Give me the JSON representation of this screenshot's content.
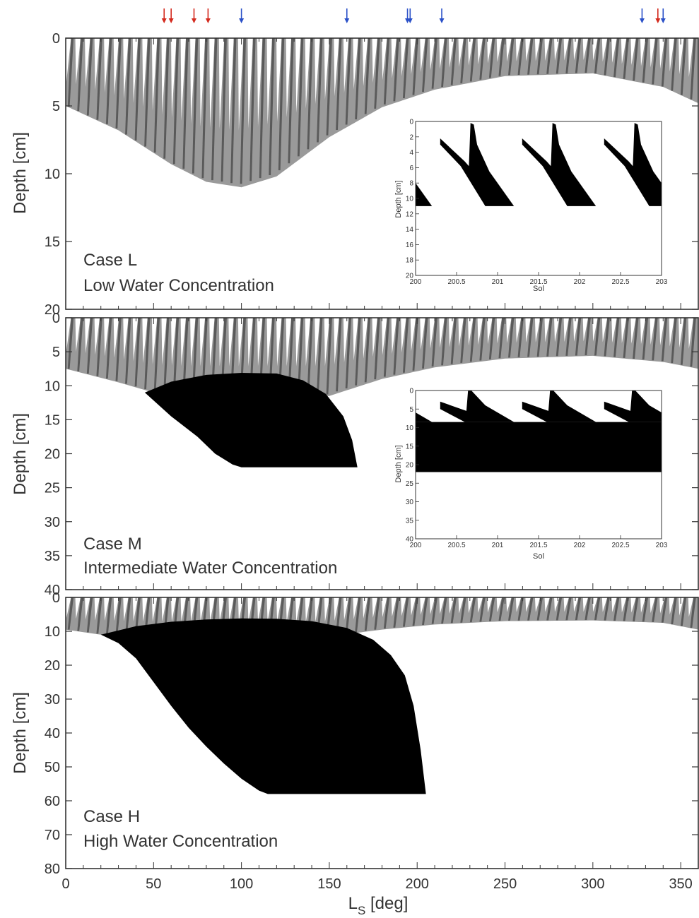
{
  "colors": {
    "ice_dry": "#9a9a9a",
    "ice_dark": "#5a5a5a",
    "ice_perm": "#000000",
    "arrow_red": "#d42a1e",
    "arrow_blue": "#2a50c8",
    "axis": "#333333"
  },
  "arrows": [
    {
      "ls": 56,
      "color": "red"
    },
    {
      "ls": 60,
      "color": "red"
    },
    {
      "ls": 73,
      "color": "red"
    },
    {
      "ls": 81,
      "color": "red"
    },
    {
      "ls": 100,
      "color": "blue"
    },
    {
      "ls": 160,
      "color": "blue"
    },
    {
      "ls": 194.5,
      "color": "blue"
    },
    {
      "ls": 196,
      "color": "blue"
    },
    {
      "ls": 214,
      "color": "blue"
    },
    {
      "ls": 328,
      "color": "blue"
    },
    {
      "ls": 337,
      "color": "red"
    },
    {
      "ls": 340,
      "color": "blue"
    }
  ],
  "chart_data": [
    {
      "type": "area",
      "id": "case-l",
      "case_label": "Case L",
      "case_desc": "Low Water Concentration",
      "xlabel": "",
      "ylabel": "Depth [cm]",
      "xlim": [
        0,
        360
      ],
      "ylim": [
        20,
        0
      ],
      "yticks": [
        0,
        5,
        10,
        15,
        20
      ],
      "x_ticklabels_shown": false,
      "seasonal_ice_max_depth": {
        "ls": [
          0,
          30,
          60,
          80,
          100,
          120,
          150,
          180,
          210,
          250,
          300,
          340,
          360
        ],
        "depth": [
          5,
          6.8,
          9.3,
          10.6,
          11,
          10.2,
          7.3,
          5.1,
          3.8,
          2.8,
          2.6,
          3.6,
          4.8
        ]
      },
      "permanent_ice": null,
      "inset": {
        "xlabel": "Sol",
        "ylabel": "Depth [cm]",
        "xlim": [
          200,
          203
        ],
        "ylim": [
          20,
          0
        ],
        "xticks": [
          "200",
          "200.5",
          "201",
          "201.5",
          "202",
          "202.5",
          "203"
        ],
        "yticks": [
          "0",
          "2",
          "4",
          "6",
          "8",
          "10",
          "12",
          "14",
          "16",
          "18",
          "20"
        ],
        "max_depth": 11
      }
    },
    {
      "type": "area",
      "id": "case-m",
      "case_label": "Case M",
      "case_desc": "Intermediate Water Concentration",
      "xlabel": "",
      "ylabel": "Depth [cm]",
      "xlim": [
        0,
        360
      ],
      "ylim": [
        40,
        0
      ],
      "yticks": [
        0,
        5,
        10,
        15,
        20,
        25,
        30,
        35,
        40
      ],
      "x_ticklabels_shown": false,
      "seasonal_ice_max_depth": {
        "ls": [
          0,
          30,
          50,
          70,
          100,
          130,
          150,
          180,
          210,
          250,
          300,
          340,
          360
        ],
        "depth": [
          7.5,
          9.5,
          11,
          11.5,
          11.5,
          11.5,
          11.5,
          9,
          7.3,
          6,
          5.6,
          6.5,
          7.5
        ]
      },
      "permanent_ice": {
        "top": {
          "ls": [
            45,
            60,
            80,
            100,
            120,
            135,
            148,
            158,
            163,
            166
          ],
          "depth": [
            11,
            9.4,
            8.4,
            8.1,
            8.2,
            9.2,
            11.2,
            14.5,
            18,
            22
          ]
        },
        "bottom": {
          "ls": [
            45,
            60,
            75,
            85,
            95,
            100,
            166
          ],
          "depth": [
            11,
            14.5,
            17.5,
            20,
            21.6,
            22,
            22
          ]
        }
      },
      "inset": {
        "xlabel": "Sol",
        "ylabel": "Depth [cm]",
        "xlim": [
          200,
          203
        ],
        "ylim": [
          40,
          0
        ],
        "xticks": [
          "200",
          "200.5",
          "201",
          "201.5",
          "202",
          "202.5",
          "203"
        ],
        "yticks": [
          "0",
          "5",
          "10",
          "15",
          "20",
          "25",
          "30",
          "35",
          "40"
        ],
        "seasonal_depth": 8.5,
        "perm_top": 8.5,
        "perm_bottom": 22
      }
    },
    {
      "type": "area",
      "id": "case-h",
      "case_label": "Case H",
      "case_desc": "High Water Concentration",
      "xlabel": "L_S [deg]",
      "ylabel": "Depth [cm]",
      "xlim": [
        0,
        360
      ],
      "ylim": [
        80,
        0
      ],
      "xticks": [
        0,
        50,
        100,
        150,
        200,
        250,
        300,
        350
      ],
      "yticks": [
        0,
        10,
        20,
        30,
        40,
        50,
        60,
        70,
        80
      ],
      "x_ticklabels_shown": true,
      "seasonal_ice_max_depth": {
        "ls": [
          0,
          20,
          50,
          80,
          110,
          150,
          180,
          210,
          250,
          300,
          340,
          360
        ],
        "depth": [
          9.5,
          11,
          11.5,
          11.5,
          11.5,
          11.5,
          9.5,
          8,
          7,
          6.8,
          7.5,
          9.5
        ]
      },
      "permanent_ice": {
        "top": {
          "ls": [
            20,
            40,
            60,
            80,
            100,
            120,
            140,
            160,
            175,
            185,
            193,
            198,
            202,
            205
          ],
          "depth": [
            11,
            8.5,
            7.2,
            6.5,
            6.2,
            6.3,
            7,
            9,
            12.5,
            17,
            23,
            32,
            45,
            58
          ]
        },
        "bottom": {
          "ls": [
            20,
            30,
            40,
            50,
            60,
            70,
            80,
            90,
            100,
            110,
            115,
            205
          ],
          "depth": [
            11,
            13.5,
            18,
            25,
            32,
            38.5,
            44,
            49,
            53.5,
            57,
            58,
            58
          ]
        }
      },
      "inset": null
    }
  ]
}
